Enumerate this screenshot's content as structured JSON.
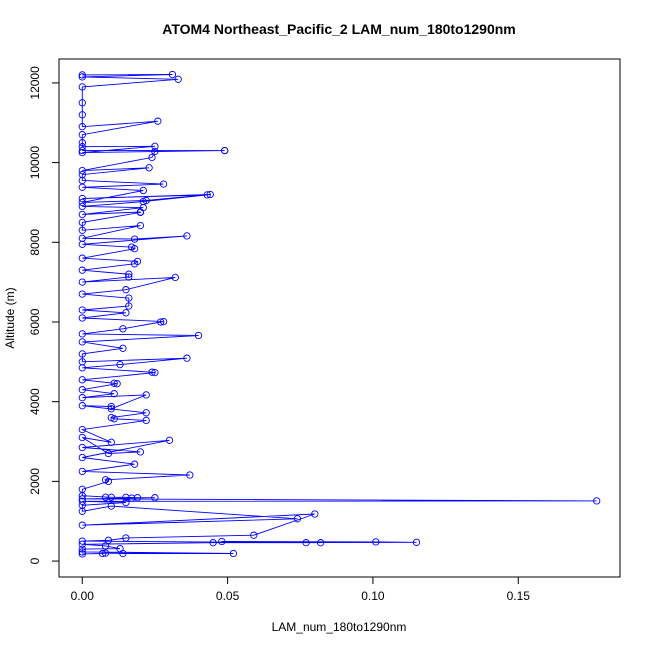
{
  "chart_data": {
    "type": "line",
    "title": "ATOM4 Northeast_Pacific_2 LAM_num_180to1290nm",
    "xlabel": "LAM_num_180to1290nm",
    "ylabel": "Altitude (m)",
    "xlim": [
      -0.008,
      0.185
    ],
    "ylim": [
      -400,
      12600
    ],
    "x_ticks": [
      0.0,
      0.05,
      0.1,
      0.15
    ],
    "x_tick_labels": [
      "0.00",
      "0.05",
      "0.10",
      "0.15"
    ],
    "y_ticks": [
      0,
      2000,
      4000,
      6000,
      8000,
      10000,
      12000
    ],
    "y_tick_labels": [
      "0",
      "2000",
      "4000",
      "6000",
      "8000",
      "10000",
      "12000"
    ],
    "grid": false,
    "legend": "none",
    "marker": "open-circle",
    "color": "#0000ff",
    "series": [
      {
        "points": [
          [
            0.0,
            180
          ],
          [
            0.007,
            190
          ],
          [
            0.008,
            200
          ],
          [
            0.014,
            190
          ],
          [
            0.052,
            190
          ],
          [
            0.0,
            230
          ],
          [
            0.0,
            300
          ],
          [
            0.013,
            310
          ],
          [
            0.008,
            380
          ],
          [
            0.0,
            420
          ],
          [
            0.045,
            460
          ],
          [
            0.115,
            470
          ],
          [
            0.101,
            480
          ],
          [
            0.048,
            490
          ],
          [
            0.082,
            460
          ],
          [
            0.077,
            460
          ],
          [
            0.0,
            500
          ],
          [
            0.009,
            520
          ],
          [
            0.015,
            580
          ],
          [
            0.059,
            650
          ],
          [
            0.08,
            1180
          ],
          [
            0.0,
            900
          ],
          [
            0.074,
            1060
          ],
          [
            0.01,
            1380
          ],
          [
            0.0,
            1250
          ],
          [
            0.0,
            1400
          ],
          [
            0.015,
            1470
          ],
          [
            0.0,
            1500
          ],
          [
            0.177,
            1510
          ],
          [
            0.0,
            1560
          ],
          [
            0.017,
            1580
          ],
          [
            0.025,
            1590
          ],
          [
            0.019,
            1590
          ],
          [
            0.015,
            1600
          ],
          [
            0.008,
            1600
          ],
          [
            0.01,
            1600
          ],
          [
            0.0,
            1640
          ],
          [
            0.0,
            1800
          ],
          [
            0.009,
            2000
          ],
          [
            0.008,
            2040
          ],
          [
            0.037,
            2160
          ],
          [
            0.0,
            2250
          ],
          [
            0.018,
            2430
          ],
          [
            0.0,
            2600
          ],
          [
            0.03,
            3030
          ],
          [
            0.0,
            2850
          ],
          [
            0.02,
            2740
          ],
          [
            0.009,
            2700
          ],
          [
            0.0,
            3100
          ],
          [
            0.01,
            2980
          ],
          [
            0.0,
            3300
          ],
          [
            0.022,
            3530
          ],
          [
            0.011,
            3570
          ],
          [
            0.01,
            3600
          ],
          [
            0.022,
            3720
          ],
          [
            0.0,
            3900
          ],
          [
            0.01,
            3880
          ],
          [
            0.01,
            3820
          ],
          [
            0.022,
            4170
          ],
          [
            0.0,
            4100
          ],
          [
            0.011,
            4200
          ],
          [
            0.0,
            4300
          ],
          [
            0.012,
            4450
          ],
          [
            0.011,
            4460
          ],
          [
            0.0,
            4550
          ],
          [
            0.025,
            4730
          ],
          [
            0.024,
            4740
          ],
          [
            0.0,
            4850
          ],
          [
            0.013,
            4930
          ],
          [
            0.036,
            5090
          ],
          [
            0.0,
            5000
          ],
          [
            0.0,
            5200
          ],
          [
            0.014,
            5340
          ],
          [
            0.0,
            5500
          ],
          [
            0.04,
            5660
          ],
          [
            0.0,
            5700
          ],
          [
            0.014,
            5830
          ],
          [
            0.027,
            6000
          ],
          [
            0.028,
            6010
          ],
          [
            0.0,
            6100
          ],
          [
            0.015,
            6230
          ],
          [
            0.0,
            6300
          ],
          [
            0.016,
            6400
          ],
          [
            0.016,
            6600
          ],
          [
            0.0,
            6700
          ],
          [
            0.015,
            6810
          ],
          [
            0.032,
            7120
          ],
          [
            0.0,
            7000
          ],
          [
            0.016,
            7130
          ],
          [
            0.016,
            7200
          ],
          [
            0.0,
            7300
          ],
          [
            0.018,
            7460
          ],
          [
            0.019,
            7520
          ],
          [
            0.0,
            7600
          ],
          [
            0.018,
            7840
          ],
          [
            0.017,
            7880
          ],
          [
            0.0,
            7950
          ],
          [
            0.036,
            8160
          ],
          [
            0.018,
            8080
          ],
          [
            0.0,
            8100
          ],
          [
            0.02,
            8420
          ],
          [
            0.0,
            8300
          ],
          [
            0.0,
            8500
          ],
          [
            0.02,
            8750
          ],
          [
            0.02,
            8760
          ],
          [
            0.0,
            8700
          ],
          [
            0.021,
            8870
          ],
          [
            0.0,
            8900
          ],
          [
            0.021,
            9020
          ],
          [
            0.043,
            9190
          ],
          [
            0.0,
            9100
          ],
          [
            0.044,
            9200
          ],
          [
            0.022,
            9050
          ],
          [
            0.0,
            9000
          ],
          [
            0.021,
            9300
          ],
          [
            0.0,
            9380
          ],
          [
            0.028,
            9460
          ],
          [
            0.0,
            9550
          ],
          [
            0.0,
            9700
          ],
          [
            0.023,
            9870
          ],
          [
            0.0,
            9800
          ],
          [
            0.024,
            10130
          ],
          [
            0.025,
            10280
          ],
          [
            0.049,
            10300
          ],
          [
            0.0,
            10300
          ],
          [
            0.049,
            10300
          ],
          [
            0.0,
            10250
          ],
          [
            0.025,
            10410
          ],
          [
            0.0,
            10400
          ],
          [
            0.0,
            10500
          ],
          [
            0.0,
            10700
          ],
          [
            0.026,
            11040
          ],
          [
            0.0,
            10900
          ],
          [
            0.0,
            11200
          ],
          [
            0.0,
            11500
          ],
          [
            0.0,
            11900
          ],
          [
            0.033,
            12090
          ],
          [
            0.0,
            12150
          ],
          [
            0.031,
            12210
          ],
          [
            0.0,
            12200
          ]
        ]
      }
    ]
  }
}
